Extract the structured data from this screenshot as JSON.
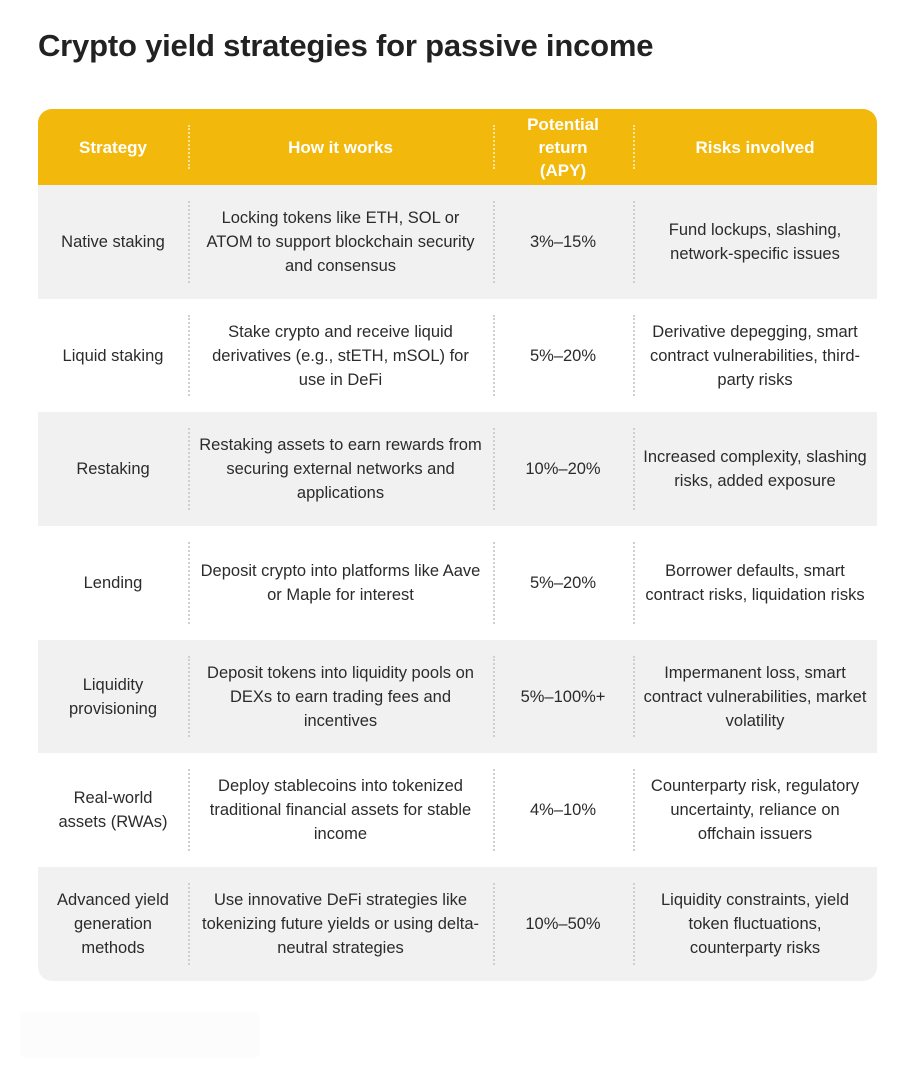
{
  "title": "Crypto yield strategies for passive income",
  "headers": [
    "Strategy",
    "How it works",
    "Potential return (APY)",
    "Risks involved"
  ],
  "rows": [
    {
      "strategy": "Native staking",
      "how": "Locking tokens like ETH, SOL or ATOM to support blockchain security and consensus",
      "apy": "3%–15%",
      "risks": "Fund lockups, slashing, network-specific issues"
    },
    {
      "strategy": "Liquid staking",
      "how": "Stake crypto and receive liquid derivatives (e.g., stETH, mSOL) for use in DeFi",
      "apy": "5%–20%",
      "risks": "Derivative depegging, smart contract vulnerabilities, third-party risks"
    },
    {
      "strategy": "Restaking",
      "how": "Restaking assets to earn rewards from securing external networks and applications",
      "apy": "10%–20%",
      "risks": "Increased complexity, slashing risks, added exposure"
    },
    {
      "strategy": "Lending",
      "how": "Deposit crypto into platforms like Aave or Maple for interest",
      "apy": "5%–20%",
      "risks": "Borrower defaults, smart contract risks, liquidation risks"
    },
    {
      "strategy": "Liquidity provisioning",
      "how": "Deposit tokens into liquidity pools on DEXs to earn trading fees and incentives",
      "apy": "5%–100%+",
      "risks": "Impermanent loss, smart contract vulnerabilities, market volatility"
    },
    {
      "strategy": "Real-world assets (RWAs)",
      "how": "Deploy stablecoins into tokenized traditional financial assets for stable income",
      "apy": "4%–10%",
      "risks": "Counterparty risk, regulatory uncertainty, reliance on offchain issuers"
    },
    {
      "strategy": "Advanced yield generation methods",
      "how": "Use innovative DeFi strategies like tokenizing future yields or using delta-neutral strategies",
      "apy": "10%–50%",
      "risks": "Liquidity constraints, yield token fluctuations, counterparty risks"
    }
  ]
}
